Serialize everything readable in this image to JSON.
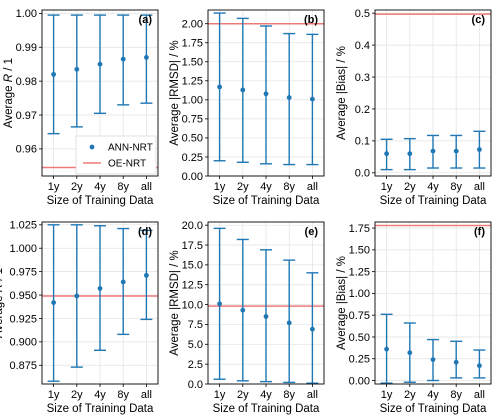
{
  "chart_data": [
    {
      "panel": "(a)",
      "type": "scatter",
      "categories": [
        "1y",
        "2y",
        "4y",
        "8y",
        "all"
      ],
      "xlabel": "Size of Training Data",
      "ylabel": "Average R / 1",
      "ylabel_parts": [
        "Average ",
        "R",
        " / 1"
      ],
      "ylim": [
        0.952,
        1.001
      ],
      "yticks": [
        0.96,
        0.97,
        0.98,
        0.99,
        1.0
      ],
      "ytick_labels": [
        "0.96",
        "0.97",
        "0.98",
        "0.99",
        "1.00"
      ],
      "series": [
        {
          "name": "ANN-NRT",
          "values": [
            0.982,
            0.9835,
            0.985,
            0.9865,
            0.987
          ],
          "lower": [
            0.9645,
            0.9665,
            0.9705,
            0.973,
            0.9735
          ],
          "upper": [
            0.9995,
            0.9995,
            0.9995,
            0.9995,
            0.9995
          ]
        },
        {
          "name": "OE-NRT",
          "line": 0.9545
        }
      ],
      "legend": {
        "position": "lower-right",
        "entries": [
          "ANN-NRT",
          "OE-NRT"
        ]
      },
      "grid": true
    },
    {
      "panel": "(b)",
      "type": "scatter",
      "categories": [
        "1y",
        "2y",
        "4y",
        "8y",
        "all"
      ],
      "xlabel": "Size of Training Data",
      "ylabel": "Average |RMSD| / %",
      "ylim": [
        0.0,
        2.18
      ],
      "yticks": [
        0.0,
        0.25,
        0.5,
        0.75,
        1.0,
        1.25,
        1.5,
        1.75,
        2.0
      ],
      "ytick_labels": [
        "0.00",
        "0.25",
        "0.50",
        "0.75",
        "1.00",
        "1.25",
        "1.50",
        "1.75",
        "2.00"
      ],
      "series": [
        {
          "name": "ANN-NRT",
          "values": [
            1.17,
            1.13,
            1.08,
            1.03,
            1.01
          ],
          "lower": [
            0.2,
            0.18,
            0.16,
            0.15,
            0.15
          ],
          "upper": [
            2.14,
            2.07,
            1.97,
            1.87,
            1.86
          ]
        },
        {
          "name": "OE-NRT",
          "line": 2.0
        }
      ],
      "grid": true
    },
    {
      "panel": "(c)",
      "type": "scatter",
      "categories": [
        "1y",
        "2y",
        "4y",
        "8y",
        "all"
      ],
      "xlabel": "Size of Training Data",
      "ylabel": "Average |Bias| / %",
      "ylim": [
        -0.01,
        0.51
      ],
      "yticks": [
        0.0,
        0.1,
        0.2,
        0.3,
        0.4,
        0.5
      ],
      "ytick_labels": [
        "0.0",
        "0.1",
        "0.2",
        "0.3",
        "0.4",
        "0.5"
      ],
      "series": [
        {
          "name": "ANN-NRT",
          "values": [
            0.06,
            0.06,
            0.068,
            0.068,
            0.073
          ],
          "lower": [
            0.01,
            0.01,
            0.015,
            0.015,
            0.015
          ],
          "upper": [
            0.105,
            0.107,
            0.117,
            0.117,
            0.13
          ]
        },
        {
          "name": "OE-NRT",
          "line": 0.497
        }
      ],
      "grid": true
    },
    {
      "panel": "(d)",
      "type": "scatter",
      "categories": [
        "1y",
        "2y",
        "4y",
        "8y",
        "all"
      ],
      "xlabel": "Size of Training Data",
      "ylabel": "Average R / 1",
      "ylabel_parts": [
        "Average ",
        "R",
        " / 1"
      ],
      "ylim": [
        0.855,
        1.028
      ],
      "yticks": [
        0.875,
        0.9,
        0.925,
        0.95,
        0.975,
        1.0,
        1.025
      ],
      "ytick_labels": [
        "0.875",
        "0.900",
        "0.925",
        "0.950",
        "0.975",
        "1.000",
        "1.025"
      ],
      "series": [
        {
          "name": "ANN-NRT",
          "values": [
            0.942,
            0.949,
            0.957,
            0.964,
            0.971
          ],
          "lower": [
            0.858,
            0.873,
            0.891,
            0.908,
            0.924
          ],
          "upper": [
            1.025,
            1.025,
            1.024,
            1.021,
            1.019
          ]
        },
        {
          "name": "OE-NRT",
          "line": 0.949
        }
      ],
      "grid": true
    },
    {
      "panel": "(e)",
      "type": "scatter",
      "categories": [
        "1y",
        "2y",
        "4y",
        "8y",
        "all"
      ],
      "xlabel": "Size of Training Data",
      "ylabel": "Average |RMSD| / %",
      "ylim": [
        0.0,
        20.4
      ],
      "yticks": [
        0.0,
        2.5,
        5.0,
        7.5,
        10.0,
        12.5,
        15.0,
        17.5,
        20.0
      ],
      "ytick_labels": [
        "0.0",
        "2.5",
        "5.0",
        "7.5",
        "10.0",
        "12.5",
        "15.0",
        "17.5",
        "20.0"
      ],
      "series": [
        {
          "name": "ANN-NRT",
          "values": [
            10.1,
            9.3,
            8.5,
            7.7,
            6.9
          ],
          "lower": [
            0.6,
            0.4,
            0.3,
            0.2,
            0.1
          ],
          "upper": [
            19.6,
            18.2,
            16.9,
            15.6,
            14.0
          ]
        },
        {
          "name": "OE-NRT",
          "line": 9.8
        }
      ],
      "grid": true
    },
    {
      "panel": "(f)",
      "type": "scatter",
      "categories": [
        "1y",
        "2y",
        "4y",
        "8y",
        "all"
      ],
      "xlabel": "Size of Training Data",
      "ylabel": "Average |Bias| / %",
      "ylim": [
        -0.04,
        1.82
      ],
      "yticks": [
        0.0,
        0.25,
        0.5,
        0.75,
        1.0,
        1.25,
        1.5,
        1.75
      ],
      "ytick_labels": [
        "0.00",
        "0.25",
        "0.50",
        "0.75",
        "1.00",
        "1.25",
        "1.50",
        "1.75"
      ],
      "series": [
        {
          "name": "ANN-NRT",
          "values": [
            0.36,
            0.32,
            0.24,
            0.21,
            0.17
          ],
          "lower": [
            -0.03,
            -0.02,
            0.0,
            0.03,
            0.03
          ],
          "upper": [
            0.76,
            0.66,
            0.47,
            0.45,
            0.35
          ]
        },
        {
          "name": "OE-NRT",
          "line": 1.78
        }
      ],
      "grid": true
    }
  ],
  "colors": {
    "ann": "#1f77b4",
    "oe": "#f07a7a",
    "grid": "#e2e2e2",
    "frame": "#000000"
  }
}
